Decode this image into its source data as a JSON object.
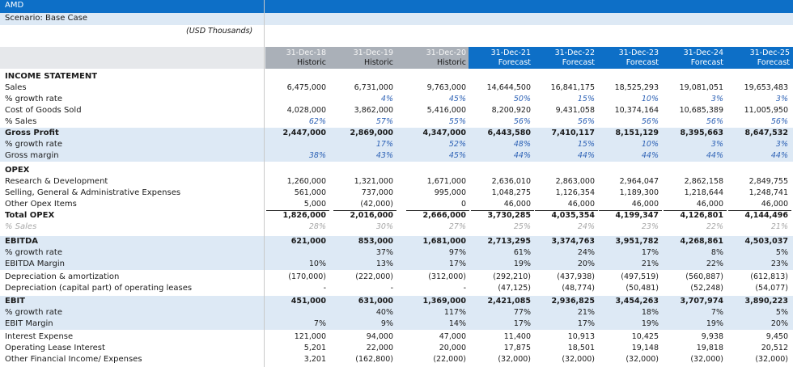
{
  "company": "AMD",
  "scenario": "Scenario: Base Case",
  "units": "(USD Thousands)",
  "columns": [
    {
      "date": "31-Dec-18",
      "type": "Historic"
    },
    {
      "date": "31-Dec-19",
      "type": "Historic"
    },
    {
      "date": "31-Dec-20",
      "type": "Historic"
    },
    {
      "date": "31-Dec-21",
      "type": "Forecast"
    },
    {
      "date": "31-Dec-22",
      "type": "Forecast"
    },
    {
      "date": "31-Dec-23",
      "type": "Forecast"
    },
    {
      "date": "31-Dec-24",
      "type": "Forecast"
    },
    {
      "date": "31-Dec-25",
      "type": "Forecast"
    }
  ],
  "colors": {
    "title_bar": "#0d6fc7",
    "band": "#dde9f5",
    "historic_header": "#aab0b8",
    "forecast_header": "#0d6fc7",
    "pct_text": "#2f63b6"
  },
  "rows": [
    {
      "label": "INCOME STATEMENT",
      "style": "section",
      "values": []
    },
    {
      "label": "Sales",
      "style": "",
      "values": [
        "6,475,000",
        "6,731,000",
        "9,763,000",
        "14,644,500",
        "16,841,175",
        "18,525,293",
        "19,081,051",
        "19,653,483"
      ]
    },
    {
      "label": "% growth rate",
      "style": "pct",
      "values": [
        "",
        "4%",
        "45%",
        "50%",
        "15%",
        "10%",
        "3%",
        "3%"
      ]
    },
    {
      "label": "Cost of Goods Sold",
      "style": "",
      "values": [
        "4,028,000",
        "3,862,000",
        "5,416,000",
        "8,200,920",
        "9,431,058",
        "10,374,164",
        "10,685,389",
        "11,005,950"
      ]
    },
    {
      "label": "% Sales",
      "style": "pct",
      "values": [
        "62%",
        "57%",
        "55%",
        "56%",
        "56%",
        "56%",
        "56%",
        "56%"
      ]
    },
    {
      "label": "Gross Profit",
      "style": "bold band",
      "values": [
        "2,447,000",
        "2,869,000",
        "4,347,000",
        "6,443,580",
        "7,410,117",
        "8,151,129",
        "8,395,663",
        "8,647,532"
      ]
    },
    {
      "label": "% growth rate",
      "style": "pct band",
      "values": [
        "",
        "17%",
        "52%",
        "48%",
        "15%",
        "10%",
        "3%",
        "3%"
      ]
    },
    {
      "label": "Gross margin",
      "style": "pct band",
      "values": [
        "38%",
        "43%",
        "45%",
        "44%",
        "44%",
        "44%",
        "44%",
        "44%"
      ]
    },
    {
      "label": "OPEX",
      "style": "section",
      "values": []
    },
    {
      "label": "Research & Development",
      "style": "",
      "values": [
        "1,260,000",
        "1,321,000",
        "1,671,000",
        "2,636,010",
        "2,863,000",
        "2,964,047",
        "2,862,158",
        "2,849,755"
      ]
    },
    {
      "label": "Selling, General & Administrative Expenses",
      "style": "",
      "values": [
        "561,000",
        "737,000",
        "995,000",
        "1,048,275",
        "1,126,354",
        "1,189,300",
        "1,218,644",
        "1,248,741"
      ]
    },
    {
      "label": "Other Opex Items",
      "style": "ul",
      "values": [
        "5,000",
        "(42,000)",
        "0",
        "46,000",
        "46,000",
        "46,000",
        "46,000",
        "46,000"
      ]
    },
    {
      "label": "Total OPEX",
      "style": "bold",
      "values": [
        "1,826,000",
        "2,016,000",
        "2,666,000",
        "3,730,285",
        "4,035,354",
        "4,199,347",
        "4,126,801",
        "4,144,496"
      ]
    },
    {
      "label": "% Sales",
      "style": "grey",
      "values": [
        "28%",
        "30%",
        "27%",
        "25%",
        "24%",
        "23%",
        "22%",
        "21%"
      ]
    },
    {
      "label": "EBITDA",
      "style": "bold band",
      "values": [
        "621,000",
        "853,000",
        "1,681,000",
        "2,713,295",
        "3,374,763",
        "3,951,782",
        "4,268,861",
        "4,503,037"
      ]
    },
    {
      "label": "% growth rate",
      "style": "band",
      "values": [
        "",
        "37%",
        "97%",
        "61%",
        "24%",
        "17%",
        "8%",
        "5%"
      ]
    },
    {
      "label": "EBITDA Margin",
      "style": "band",
      "values": [
        "10%",
        "13%",
        "17%",
        "19%",
        "20%",
        "21%",
        "22%",
        "23%"
      ]
    },
    {
      "label": "Depreciation & amortization",
      "style": "",
      "values": [
        "(170,000)",
        "(222,000)",
        "(312,000)",
        "(292,210)",
        "(437,938)",
        "(497,519)",
        "(560,887)",
        "(612,813)"
      ]
    },
    {
      "label": "Depreciation (capital part) of operating leases",
      "style": "",
      "values": [
        "-",
        "-",
        "-",
        "(47,125)",
        "(48,774)",
        "(50,481)",
        "(52,248)",
        "(54,077)"
      ]
    },
    {
      "label": "EBIT",
      "style": "bold band",
      "values": [
        "451,000",
        "631,000",
        "1,369,000",
        "2,421,085",
        "2,936,825",
        "3,454,263",
        "3,707,974",
        "3,890,223"
      ]
    },
    {
      "label": "% growth rate",
      "style": "band",
      "values": [
        "",
        "40%",
        "117%",
        "77%",
        "21%",
        "18%",
        "7%",
        "5%"
      ]
    },
    {
      "label": "EBIT Margin",
      "style": "band",
      "values": [
        "7%",
        "9%",
        "14%",
        "17%",
        "17%",
        "19%",
        "19%",
        "20%"
      ]
    },
    {
      "label": "Interest Expense",
      "style": "",
      "values": [
        "121,000",
        "94,000",
        "47,000",
        "11,400",
        "10,913",
        "10,425",
        "9,938",
        "9,450"
      ]
    },
    {
      "label": "Operating Lease Interest",
      "style": "",
      "values": [
        "5,201",
        "22,000",
        "20,000",
        "17,875",
        "18,501",
        "19,148",
        "19,818",
        "20,512"
      ]
    },
    {
      "label": "Other Financial Income/ Expenses",
      "style": "",
      "values": [
        "3,201",
        "(162,800)",
        "(22,000)",
        "(32,000)",
        "(32,000)",
        "(32,000)",
        "(32,000)",
        "(32,000)"
      ]
    }
  ]
}
